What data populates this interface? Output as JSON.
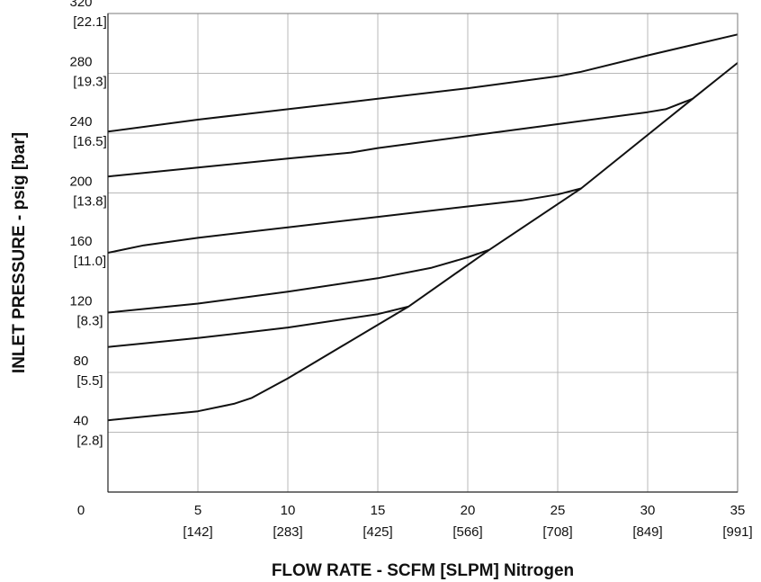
{
  "chart_data": {
    "type": "line",
    "xlabel": "FLOW RATE - SCFM [SLPM] Nitrogen",
    "ylabel": "INLET PRESSURE - psig [bar]",
    "xlim": [
      0,
      35
    ],
    "ylim": [
      0,
      320
    ],
    "grid": true,
    "x_ticks": [
      {
        "value": 5,
        "label": "5",
        "sub": "[142]"
      },
      {
        "value": 10,
        "label": "10",
        "sub": "[283]"
      },
      {
        "value": 15,
        "label": "15",
        "sub": "[425]"
      },
      {
        "value": 20,
        "label": "20",
        "sub": "[566]"
      },
      {
        "value": 25,
        "label": "25",
        "sub": "[708]"
      },
      {
        "value": 30,
        "label": "30",
        "sub": "[849]"
      },
      {
        "value": 35,
        "label": "35",
        "sub": "[991]"
      }
    ],
    "y_ticks": [
      {
        "value": 0,
        "label": "0",
        "sub": ""
      },
      {
        "value": 40,
        "label": "40",
        "sub": "[2.8]"
      },
      {
        "value": 80,
        "label": "80",
        "sub": "[5.5]"
      },
      {
        "value": 120,
        "label": "120",
        "sub": "[8.3]"
      },
      {
        "value": 160,
        "label": "160",
        "sub": "[11.0]"
      },
      {
        "value": 200,
        "label": "200",
        "sub": "[13.8]"
      },
      {
        "value": 240,
        "label": "240",
        "sub": "[16.5]"
      },
      {
        "value": 280,
        "label": "280",
        "sub": "[19.3]"
      },
      {
        "value": 320,
        "label": "320",
        "sub": "[22.1]"
      }
    ],
    "series": [
      {
        "x": [
          0,
          5,
          10,
          15,
          20,
          25,
          26.3,
          30,
          35
        ],
        "y": [
          241,
          249,
          256,
          263,
          270,
          278,
          281,
          292,
          306
        ]
      },
      {
        "x": [
          0,
          5,
          10,
          13.5,
          15,
          20,
          25,
          30,
          31,
          32.5
        ],
        "y": [
          211,
          217,
          223,
          227,
          230,
          238,
          246,
          254,
          256,
          263
        ]
      },
      {
        "x": [
          0,
          2,
          5,
          10,
          15,
          20,
          23,
          25,
          26.3
        ],
        "y": [
          160,
          165,
          170,
          177,
          184,
          191,
          195,
          199,
          203
        ]
      },
      {
        "x": [
          0,
          5,
          10,
          15,
          18,
          20,
          21.2
        ],
        "y": [
          120,
          126,
          134,
          143,
          150,
          157,
          162
        ]
      },
      {
        "x": [
          0,
          5,
          10,
          15,
          16.7
        ],
        "y": [
          97,
          103,
          110,
          119,
          124
        ]
      },
      {
        "x": [
          0,
          5,
          7,
          8,
          10,
          16.7,
          21.2,
          26.3,
          32.5,
          35
        ],
        "y": [
          48,
          54,
          59,
          63,
          76,
          124,
          162,
          203,
          263,
          287
        ]
      }
    ]
  }
}
